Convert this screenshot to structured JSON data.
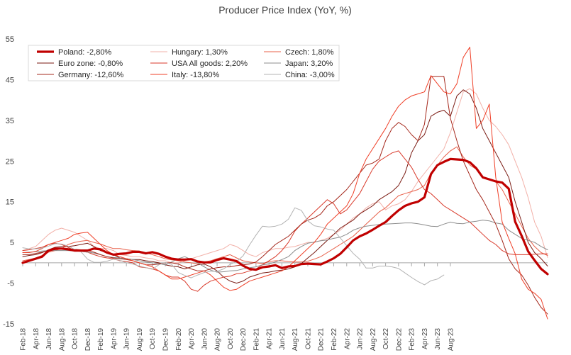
{
  "chart_data": {
    "type": "line",
    "title": "Producer Price Index (YoY, %)",
    "xlabel": "",
    "ylabel": "",
    "ylim": [
      -15,
      55
    ],
    "yticks": [
      -15,
      -5,
      5,
      15,
      25,
      35,
      45,
      55
    ],
    "x_tick_labels": [
      "Feb-18",
      "Apr-18",
      "Jun-18",
      "Aug-18",
      "Oct-18",
      "Dec-18",
      "Feb-19",
      "Apr-19",
      "Jun-19",
      "Aug-19",
      "Oct-19",
      "Dec-19",
      "Feb-20",
      "Apr-20",
      "Jun-20",
      "Aug-20",
      "Oct-20",
      "Dec-20",
      "Feb-21",
      "Apr-21",
      "Jun-21",
      "Aug-21",
      "Oct-21",
      "Dec-21",
      "Feb-22",
      "Apr-22",
      "Jun-22",
      "Aug-22",
      "Oct-22",
      "Dec-22",
      "Feb-23",
      "Apr-23",
      "Jun-23",
      "Aug-23"
    ],
    "x_tick_step_months": 2,
    "x_start": "Feb-18",
    "grid": false,
    "legend_position": "top-left",
    "series": [
      {
        "name": "Poland: -2,80%",
        "color": "#c00000",
        "width": 3.2,
        "values": [
          0,
          0.5,
          1,
          1.5,
          3,
          3.5,
          3.5,
          3.3,
          3,
          3,
          3,
          3.5,
          3.3,
          2.5,
          2,
          2.2,
          2.3,
          2.7,
          2.7,
          2.3,
          2.6,
          2.2,
          1.5,
          1,
          0.8,
          0.8,
          0.9,
          0.3,
          0.1,
          0.1,
          0.7,
          1.1,
          0.8,
          0.4,
          -0.7,
          -1.5,
          -1.7,
          -1.1,
          -0.9,
          -0.6,
          -1.3,
          -0.9,
          -0.8,
          -0.3,
          -0.2,
          -0.3,
          -0.4,
          0.3,
          1.1,
          2.2,
          3.8,
          5.5,
          6.5,
          7.2,
          8.1,
          9.1,
          10,
          11.5,
          12.9,
          14,
          14.6,
          15,
          16.1,
          21.8,
          24,
          24.8,
          25.5,
          25.4,
          25.3,
          24.7,
          23.2,
          21,
          20.5,
          20,
          19.7,
          18.2,
          10.1,
          6.6,
          2.8,
          0.6,
          -1.5,
          -2.8
        ]
      },
      {
        "name": "Hungary: 1,30%",
        "color": "#f2b0a8",
        "width": 1,
        "values": [
          3,
          3.5,
          4,
          5.5,
          7,
          8,
          8.5,
          8,
          7.5,
          6.5,
          5.5,
          4,
          3.5,
          3.5,
          3,
          2,
          1.8,
          1.5,
          1.5,
          1.2,
          1,
          0.5,
          0.5,
          0,
          0,
          0.5,
          1,
          1.5,
          2,
          2.5,
          3,
          3.5,
          4.5,
          4,
          3,
          2,
          1.5,
          2.5,
          3,
          3.5,
          3.5,
          3.8,
          4,
          4.5,
          5,
          5,
          5.5,
          6,
          7,
          8,
          9.5,
          11,
          12,
          13.5,
          14.5,
          15,
          13,
          14,
          14.5,
          15.5,
          17.5,
          20,
          22,
          24,
          26,
          28,
          32,
          37,
          42,
          42.8,
          41.5,
          38,
          35,
          33.5,
          31.5,
          29,
          25,
          21,
          16,
          10,
          6.5,
          1.3
        ]
      },
      {
        "name": "Czech: 1,80%",
        "color": "#e8604a",
        "width": 1,
        "values": [
          0.5,
          0.8,
          1.2,
          1.8,
          2.6,
          3,
          3.5,
          4.5,
          5,
          5.3,
          5.5,
          5,
          4.6,
          4,
          3.5,
          3.5,
          3.2,
          3,
          2.9,
          2.5,
          2,
          1.5,
          1,
          0.7,
          0.5,
          0.2,
          0,
          -0.3,
          0.2,
          0.5,
          1,
          1.5,
          2,
          1.2,
          0.5,
          0.2,
          0,
          -0.2,
          0.3,
          0.5,
          0.5,
          0.3,
          0.2,
          0.2,
          0.4,
          0.9,
          1.5,
          2.5,
          3.5,
          4.5,
          5.5,
          6.5,
          8,
          9.5,
          11,
          12.5,
          13.5,
          15,
          16.5,
          17,
          17.5,
          18,
          19,
          22,
          24,
          26,
          27.5,
          28.5,
          26,
          24,
          23,
          21,
          20.5,
          20,
          18,
          15,
          12,
          9,
          6,
          4,
          2.5,
          1.8
        ]
      },
      {
        "name": "Euro zone: -0,80%",
        "color": "#7a1a12",
        "width": 1,
        "values": [
          1.5,
          1.8,
          2,
          2.5,
          3.2,
          3.8,
          4,
          4,
          4.2,
          4.5,
          4.8,
          4,
          3,
          2.5,
          2,
          1.2,
          1,
          0.8,
          0.8,
          0.5,
          0.3,
          0,
          -0.5,
          -0.8,
          -1,
          -1.5,
          -1,
          -0.5,
          -0.3,
          -1,
          -2,
          -3.5,
          -4.5,
          -5,
          -4.5,
          -3.5,
          -3,
          -2.5,
          -2.3,
          -2,
          -1.8,
          -1.5,
          -1,
          -0.2,
          1.2,
          2.5,
          4,
          5.5,
          7,
          8.5,
          9.5,
          10.5,
          12,
          13,
          14,
          15.5,
          16.5,
          17.5,
          19,
          22,
          27,
          30,
          31.5,
          36,
          37,
          37.5,
          36,
          41,
          42.5,
          41.5,
          38,
          33,
          30,
          27,
          24,
          21,
          15,
          10,
          5,
          2.5,
          1,
          -0.8
        ]
      },
      {
        "name": "USA All goods: 2,20%",
        "color": "#d93a2b",
        "width": 1,
        "values": [
          3,
          3.2,
          3.5,
          3.8,
          4.5,
          4.8,
          4.5,
          3.8,
          3,
          2.8,
          2.6,
          2,
          1.5,
          1.2,
          1,
          0.5,
          0.3,
          0,
          -1,
          -1.2,
          -1.5,
          -2,
          -3,
          -3.5,
          -3.5,
          -4.5,
          -6.5,
          -7,
          -5.5,
          -4.5,
          -4,
          -3.5,
          -3.3,
          -2.7,
          -2.5,
          -2,
          -1.5,
          -0.5,
          0.5,
          1.5,
          3,
          5,
          7.8,
          9.5,
          11,
          12.5,
          14,
          15.5,
          14.5,
          12,
          13,
          15,
          17,
          20,
          23,
          25,
          26,
          27,
          27.5,
          25.5,
          23.5,
          20.5,
          18,
          17,
          15.5,
          14,
          13,
          12,
          11,
          10,
          8.5,
          7,
          5.5,
          4.5,
          3,
          2.2,
          2,
          2,
          2,
          2.1,
          2.2,
          2.2
        ]
      },
      {
        "name": "Japan: 3,20%",
        "color": "#8c8c8c",
        "width": 1,
        "values": [
          2.5,
          2.6,
          2.7,
          2.9,
          3,
          3,
          3,
          3,
          2.9,
          2.8,
          2.6,
          2.4,
          2,
          1.5,
          1.3,
          1.2,
          1,
          0.8,
          0.5,
          0.2,
          0,
          -0.2,
          -0.5,
          0.2,
          1,
          1.5,
          0.8,
          0,
          -1,
          -1.8,
          -2.3,
          -2.2,
          -2,
          -1.9,
          -1.5,
          -1.2,
          -1,
          -0.5,
          -0.3,
          0.2,
          0.8,
          1.5,
          3,
          4,
          4.8,
          5.1,
          5.4,
          5.6,
          6,
          6.3,
          7,
          8,
          8.6,
          9,
          9.2,
          9.4,
          9.5,
          9.6,
          9.7,
          9.8,
          9.8,
          9.6,
          9.3,
          9,
          8.9,
          9.5,
          10,
          9.7,
          9.6,
          10,
          10.2,
          10.5,
          10.3,
          9.8,
          9.5,
          8,
          7,
          6,
          5.5,
          5,
          4,
          3.2
        ]
      },
      {
        "name": "Germany: -12,60%",
        "color": "#a5281c",
        "width": 1,
        "values": [
          2,
          2,
          2.3,
          2.6,
          3,
          3.2,
          3.5,
          3.5,
          3.3,
          3.2,
          3,
          2.6,
          2,
          1.5,
          1.2,
          1,
          0.8,
          0.5,
          0,
          -0.5,
          -0.5,
          -0.3,
          0,
          0,
          -0.3,
          -1,
          -1.5,
          -2,
          -2,
          -1.5,
          -1.2,
          -1,
          -1,
          -0.7,
          -0.5,
          -0.3,
          0.2,
          1.5,
          3,
          4.5,
          5.5,
          6.5,
          8,
          9.5,
          10.5,
          11,
          12,
          14,
          15,
          16.5,
          18,
          20,
          22,
          24,
          24.5,
          25.5,
          30,
          33,
          34.5,
          33.5,
          31.5,
          30,
          34,
          45.8,
          45.8,
          45.8,
          35.5,
          30,
          25,
          21.5,
          18,
          15.5,
          12.5,
          9.5,
          5.5,
          1,
          -1.5,
          -3,
          -5.5,
          -8.5,
          -11,
          -12.6
        ]
      },
      {
        "name": "Italy: -13,80%",
        "color": "#ef3f27",
        "width": 1,
        "values": [
          2.5,
          2.5,
          2.8,
          3.5,
          4.5,
          5,
          5.5,
          6,
          7,
          7.3,
          7.5,
          6,
          4.5,
          3,
          2,
          1.5,
          1,
          0.5,
          0,
          -0.5,
          -1,
          -2,
          -3,
          -4,
          -4,
          -3.5,
          -3,
          -2.5,
          -2,
          -3,
          -4.5,
          -6,
          -6.8,
          -6.5,
          -5.5,
          -4.5,
          -4,
          -3.5,
          -3,
          -2.5,
          -2,
          -1,
          0.5,
          2,
          3.5,
          5,
          7,
          9.5,
          11,
          12.5,
          14,
          17,
          22,
          25.5,
          28,
          30.5,
          33,
          36,
          38.5,
          40,
          41,
          41.5,
          42,
          46,
          44,
          42,
          41.5,
          44,
          50.5,
          53,
          33,
          35,
          39,
          21,
          10,
          6,
          2.2,
          -4,
          -6.5,
          -7.5,
          -9,
          -13.8
        ]
      },
      {
        "name": "China: -3,00%",
        "color": "#b3b3b3",
        "width": 1,
        "values": [
          3.7,
          3.4,
          3.4,
          3.6,
          4.1,
          4.7,
          4.6,
          4.1,
          3.3,
          2.7,
          0.9,
          0.1,
          0.1,
          0.4,
          0.9,
          0.6,
          0,
          -0.3,
          -0.8,
          -1.2,
          -1.6,
          -0.5,
          0.1,
          -0.4,
          -2.4,
          -3.1,
          -3.7,
          -3,
          -2.4,
          -2.1,
          -2.1,
          -1.5,
          -0.4,
          0.3,
          1.7,
          4.4,
          6.8,
          9,
          8.8,
          9,
          9.5,
          10.7,
          13.5,
          12.9,
          10.3,
          9.1,
          8.8,
          8.3,
          8,
          6.1,
          4.2,
          2.3,
          0.9,
          -1.3,
          -1.3,
          -0.8,
          -0.8,
          -1,
          -1.4,
          -2.5,
          -3.6,
          -4.6,
          -5.4,
          -4.4,
          -4,
          -3
        ]
      }
    ]
  }
}
